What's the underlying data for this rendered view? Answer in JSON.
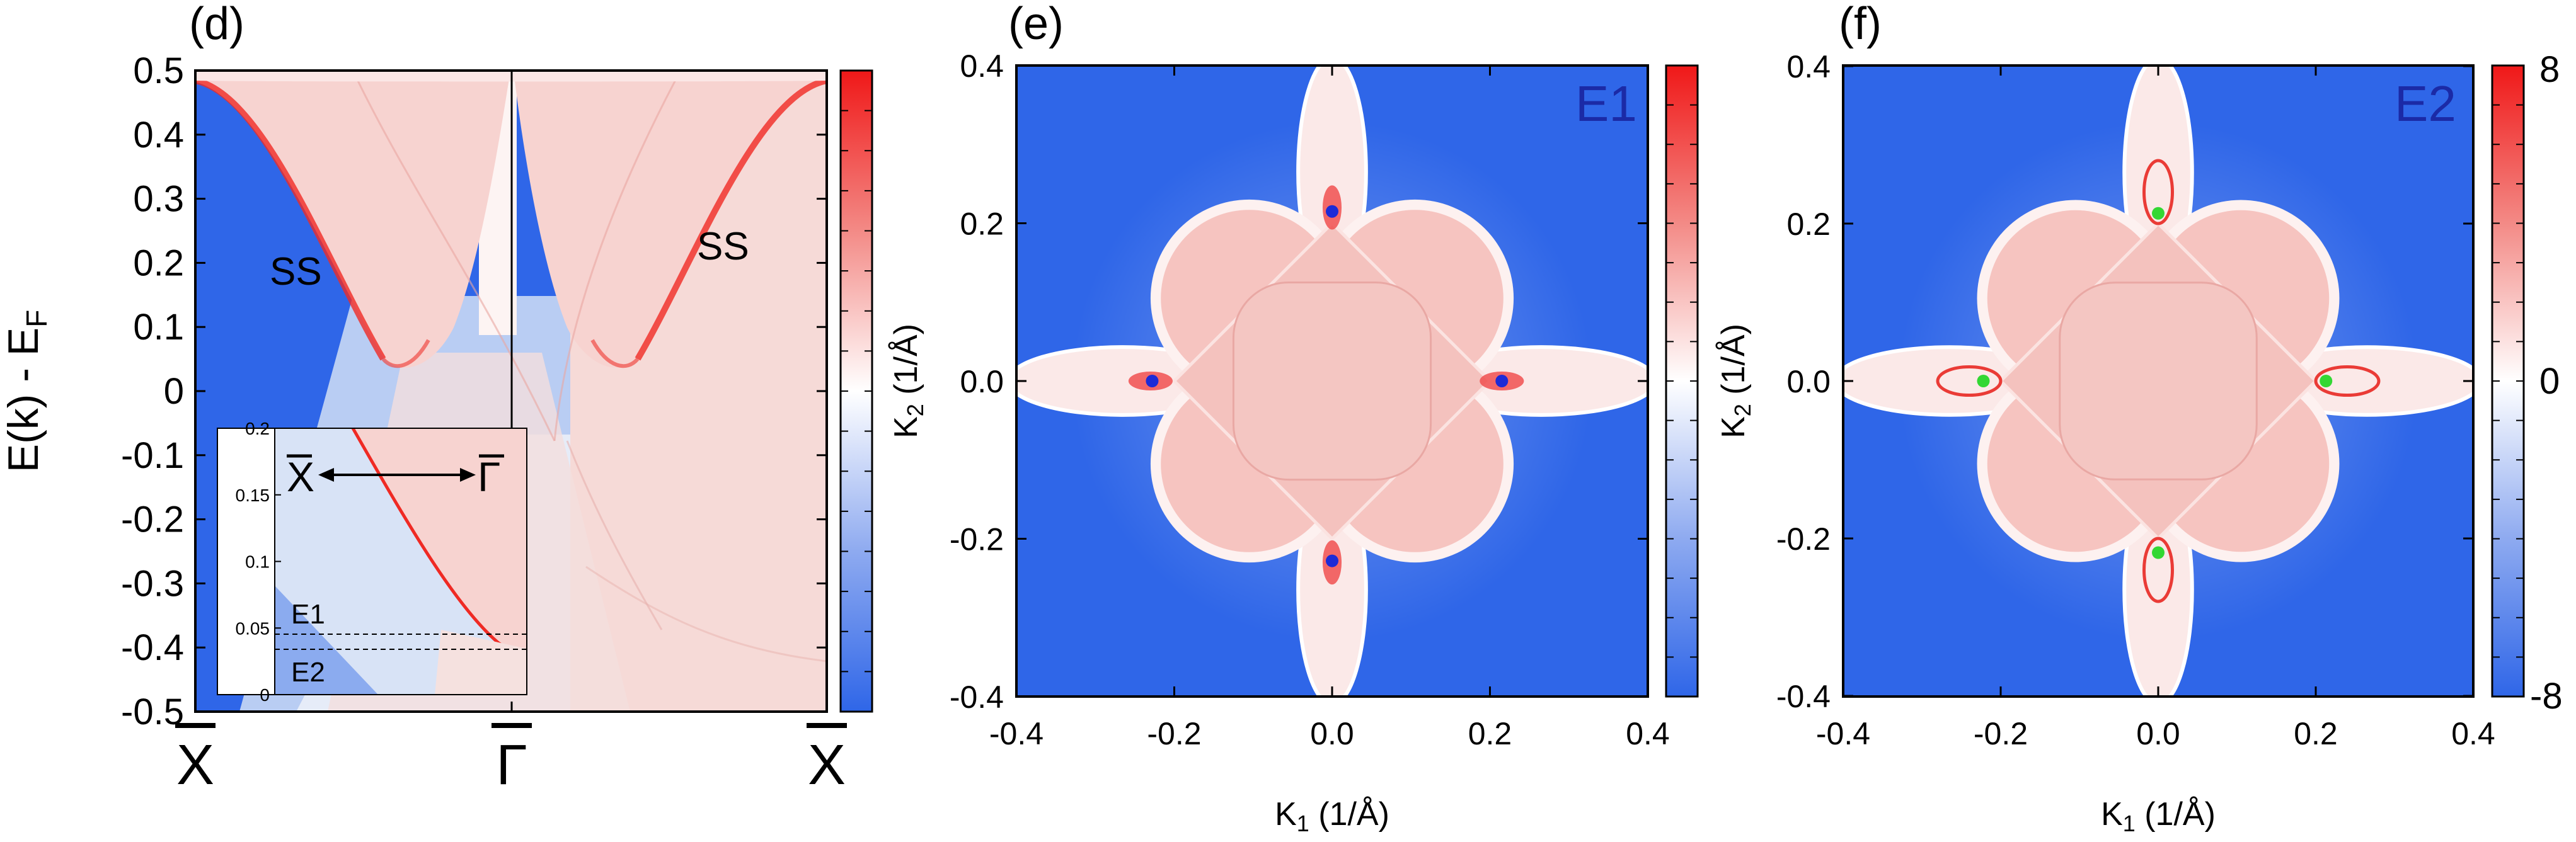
{
  "colors": {
    "blue": "#2f66e8",
    "light_blue": "#c4d4f4",
    "white": "#ffffff",
    "pink": "#f7d2cf",
    "red": "#f01818",
    "blue_dot": "#1d2ad6",
    "green_dot": "#33d733",
    "label_blue": "#1b2aa6"
  },
  "chart_data": [
    {
      "id": "d",
      "type": "heatmap",
      "panel_label": "(d)",
      "ylabel_main": "E(k) - E",
      "ylabel_sub": "F",
      "ylim": [
        -0.5,
        0.5
      ],
      "yticks": [
        "0.5",
        "0.4",
        "0.3",
        "0.2",
        "0.1",
        "0",
        "-0.1",
        "-0.2",
        "-0.3",
        "-0.4",
        "-0.5"
      ],
      "xticks": [
        "X",
        "Γ",
        "X"
      ],
      "annotations": [
        "SS",
        "SS"
      ],
      "colorbar_labels": [],
      "inset": {
        "ylim": [
          0,
          0.2
        ],
        "yticks": [
          "0.2",
          "0.15",
          "0.1",
          "0.05",
          "0"
        ],
        "path_from": "X",
        "path_to": "Γ",
        "cuts": [
          {
            "label": "E1",
            "energy": 0.038
          },
          {
            "label": "E2",
            "energy": 0.027
          }
        ]
      }
    },
    {
      "id": "e",
      "type": "heatmap",
      "panel_label": "(e)",
      "corner_label": "E1",
      "xlim": [
        -0.4,
        0.4
      ],
      "ylim": [
        -0.4,
        0.4
      ],
      "xticks": [
        "-0.4",
        "-0.2",
        "0.0",
        "0.2",
        "0.4"
      ],
      "yticks": [
        "0.4",
        "0.2",
        "0.0",
        "-0.2",
        "-0.4"
      ],
      "xlabel_main": "K",
      "xlabel_sub": "1",
      "xlabel_unit": " (1/Å)",
      "ylabel_main": "K",
      "ylabel_sub": "2",
      "ylabel_unit": " (1/Å)",
      "points": [
        {
          "x": 0.0,
          "y": 0.215
        },
        {
          "x": -0.228,
          "y": 0.0
        },
        {
          "x": 0.215,
          "y": 0.0
        },
        {
          "x": 0.0,
          "y": -0.228
        }
      ],
      "colorbar_labels": []
    },
    {
      "id": "f",
      "type": "heatmap",
      "panel_label": "(f)",
      "corner_label": "E2",
      "xlim": [
        -0.4,
        0.4
      ],
      "ylim": [
        -0.4,
        0.4
      ],
      "xticks": [
        "-0.4",
        "-0.2",
        "0.0",
        "0.2",
        "0.4"
      ],
      "yticks": [
        "0.4",
        "0.2",
        "0.0",
        "-0.2",
        "-0.4"
      ],
      "xlabel_main": "K",
      "xlabel_sub": "1",
      "xlabel_unit": " (1/Å)",
      "ylabel_main": "K",
      "ylabel_sub": "2",
      "ylabel_unit": " (1/Å)",
      "points": [
        {
          "x": 0.0,
          "y": 0.213
        },
        {
          "x": -0.222,
          "y": 0.0
        },
        {
          "x": 0.213,
          "y": 0.0
        },
        {
          "x": 0.0,
          "y": -0.218
        }
      ],
      "colorbar_range": [
        -8,
        8
      ],
      "colorbar_labels": [
        "8",
        "0",
        "-8"
      ]
    }
  ]
}
